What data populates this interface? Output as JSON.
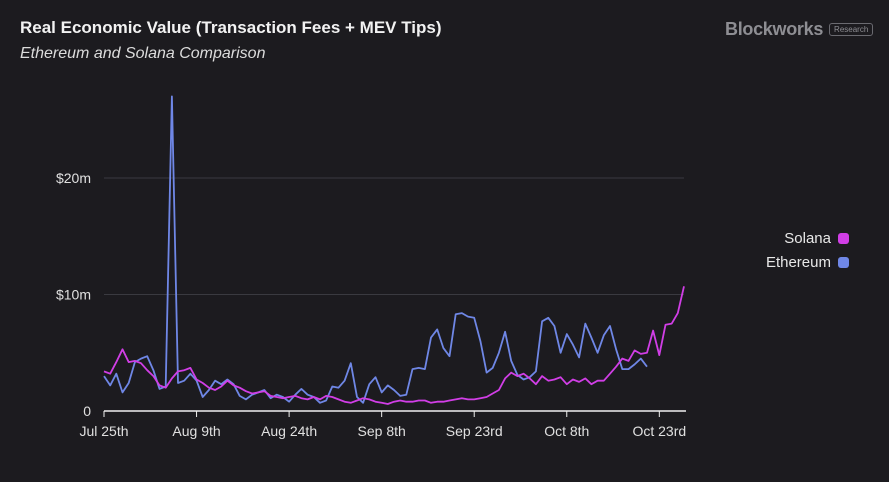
{
  "header": {
    "title": "Real Economic Value (Transaction Fees + MEV Tips)",
    "subtitle": "Ethereum and Solana Comparison",
    "brand": "Blockworks",
    "brand_badge": "Research"
  },
  "chart_data": {
    "type": "line",
    "title": "Real Economic Value (Transaction Fees + MEV Tips)",
    "subtitle": "Ethereum and Solana Comparison",
    "xlabel": "",
    "ylabel": "",
    "x_tick_labels": [
      "Jul 25th",
      "Aug 9th",
      "Aug 24th",
      "Sep 8th",
      "Sep 23rd",
      "Oct 8th",
      "Oct 23rd"
    ],
    "x_tick_index": [
      0,
      15,
      30,
      45,
      60,
      75,
      90
    ],
    "y_tick_labels": [
      "0",
      "$10m",
      "$20m"
    ],
    "y_tick_values": [
      0,
      10,
      20
    ],
    "ylim": [
      0,
      27.5
    ],
    "y_unit": "millions USD",
    "grid": "horizontal",
    "legend_position": "right",
    "series": [
      {
        "name": "Solana",
        "color": "#d13ee6",
        "values": [
          3.4,
          3.2,
          4.2,
          5.3,
          4.2,
          4.3,
          4.1,
          3.5,
          3.0,
          2.2,
          2.0,
          2.8,
          3.4,
          3.5,
          3.7,
          2.7,
          2.4,
          2.0,
          1.8,
          2.1,
          2.6,
          2.2,
          2.0,
          1.7,
          1.5,
          1.6,
          1.7,
          1.3,
          1.2,
          1.1,
          1.2,
          1.3,
          1.1,
          1.0,
          1.2,
          1.0,
          1.3,
          1.2,
          1.0,
          0.8,
          0.7,
          0.9,
          1.1,
          1.0,
          0.8,
          0.7,
          0.6,
          0.8,
          0.9,
          0.8,
          0.8,
          0.9,
          0.9,
          0.7,
          0.8,
          0.8,
          0.9,
          1.0,
          1.1,
          1.0,
          1.0,
          1.1,
          1.2,
          1.5,
          1.8,
          2.8,
          3.3,
          3.0,
          3.2,
          2.8,
          2.3,
          3.0,
          2.6,
          2.7,
          2.9,
          2.3,
          2.7,
          2.5,
          2.8,
          2.3,
          2.6,
          2.6,
          3.2,
          3.8,
          4.5,
          4.3,
          5.2,
          4.9,
          5.0,
          6.9,
          4.8,
          7.4,
          7.5,
          8.4,
          10.7
        ]
      },
      {
        "name": "Ethereum",
        "color": "#6f87e6",
        "values": [
          3.0,
          2.2,
          3.2,
          1.6,
          2.4,
          4.2,
          4.5,
          4.7,
          3.5,
          1.9,
          2.1,
          27.0,
          2.4,
          2.6,
          3.2,
          2.6,
          1.2,
          1.8,
          2.6,
          2.3,
          2.7,
          2.3,
          1.3,
          1.0,
          1.4,
          1.6,
          1.8,
          1.1,
          1.4,
          1.2,
          0.8,
          1.4,
          1.9,
          1.4,
          1.2,
          0.7,
          0.9,
          2.1,
          2.0,
          2.6,
          4.1,
          1.2,
          0.7,
          2.3,
          2.9,
          1.6,
          2.2,
          1.8,
          1.3,
          1.4,
          3.6,
          3.7,
          3.6,
          6.3,
          7.0,
          5.4,
          4.7,
          8.3,
          8.4,
          8.1,
          8.0,
          6.0,
          3.3,
          3.7,
          5.0,
          6.8,
          4.3,
          3.1,
          2.7,
          2.9,
          3.4,
          7.7,
          8.0,
          7.3,
          5.0,
          6.6,
          5.7,
          4.6,
          7.5,
          6.3,
          5.0,
          6.5,
          7.3,
          5.3,
          3.6,
          3.6,
          4.0,
          4.5,
          3.8
        ]
      }
    ]
  }
}
